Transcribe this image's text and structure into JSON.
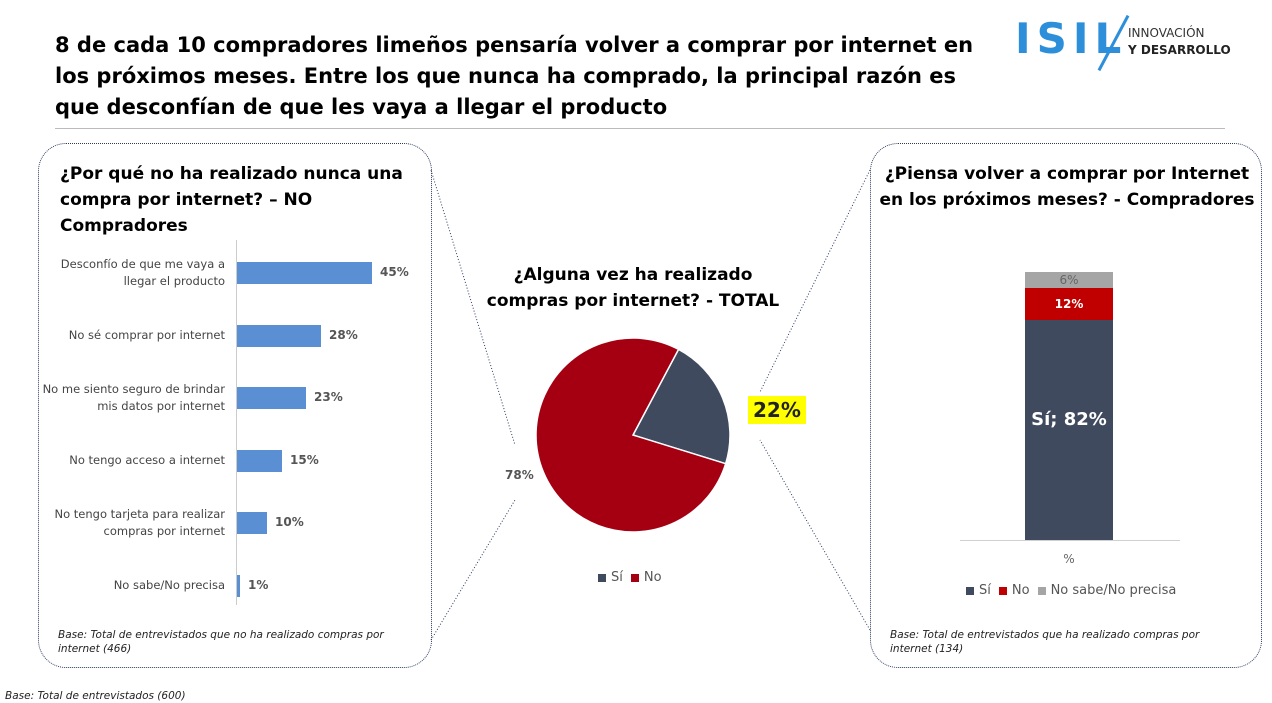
{
  "title": "8 de cada 10 compradores limeños pensaría volver a comprar por internet en los próximos meses. Entre los que nunca ha comprado, la principal razón es que desconfían de que les vaya a llegar el producto",
  "logo": {
    "brand": "ISIL",
    "line1": "INNOVACIÓN",
    "line2": "Y DESARROLLO"
  },
  "footnote": "Base: Total de entrevistados (600)",
  "chart_data": [
    {
      "type": "bar",
      "orientation": "horizontal",
      "title": "¿Por qué no ha realizado nunca una compra por internet? – NO Compradores",
      "categories": [
        "Desconfío de que me vaya a llegar el producto",
        "No sé comprar por internet",
        "No me siento seguro de brindar mis datos por internet",
        "No tengo acceso a internet",
        "No tengo tarjeta para realizar compras por internet",
        "No sabe/No precisa"
      ],
      "values": [
        45,
        28,
        23,
        15,
        10,
        1
      ],
      "value_labels": [
        "45%",
        "28%",
        "23%",
        "15%",
        "10%",
        "1%"
      ],
      "color": "#5b8fd4",
      "note": "Base: Total de entrevistados que no ha realizado compras por internet (466)"
    },
    {
      "type": "pie",
      "title": "¿Alguna vez ha realizado compras por internet? - TOTAL",
      "categories": [
        "Sí",
        "No"
      ],
      "values": [
        22,
        78
      ],
      "value_labels": [
        "22%",
        "78%"
      ],
      "colors": [
        "#404a5f",
        "#a50012"
      ]
    },
    {
      "type": "stacked_bar",
      "title": "¿Piensa volver a comprar por Internet en los próximos meses? - Compradores",
      "categories": [
        "%"
      ],
      "series": [
        {
          "name": "Sí",
          "color": "#404a5f",
          "values": [
            82
          ],
          "value_labels": [
            "Sí; 82%"
          ]
        },
        {
          "name": "No",
          "color": "#c00000",
          "values": [
            12
          ],
          "value_labels": [
            "12%"
          ]
        },
        {
          "name": "No sabe/No precisa",
          "color": "#a5a5a5",
          "values": [
            6
          ],
          "value_labels": [
            "6%"
          ]
        }
      ],
      "note": "Base: Total de entrevistados que ha realizado compras por internet (134)"
    }
  ]
}
